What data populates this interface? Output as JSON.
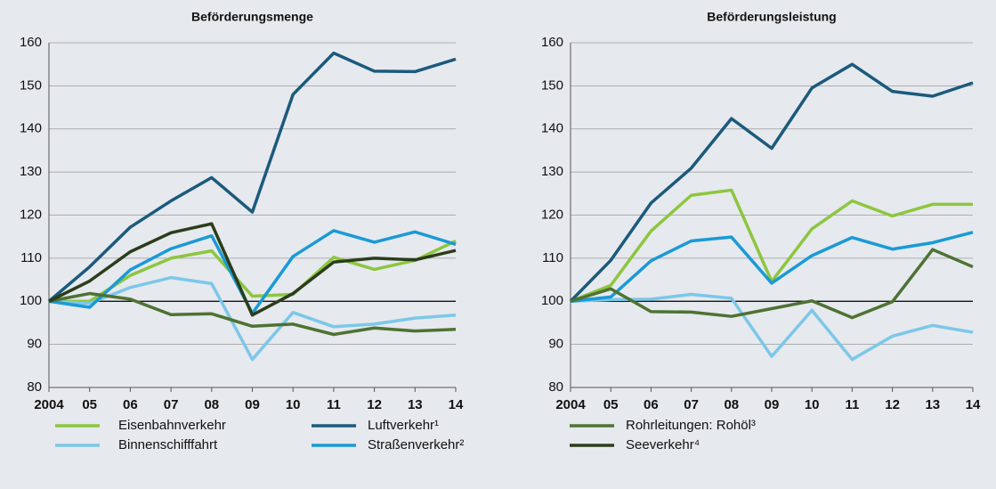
{
  "chart_data": [
    {
      "type": "line",
      "title": "Beförderungsmenge",
      "categories": [
        "2004",
        "05",
        "06",
        "07",
        "08",
        "09",
        "10",
        "11",
        "12",
        "13",
        "14"
      ],
      "ylim": [
        80,
        160
      ],
      "yticks": [
        80,
        90,
        100,
        110,
        120,
        130,
        140,
        150,
        160
      ],
      "grid": true,
      "refline": 100,
      "series": [
        {
          "name": "Eisenbahnverkehr",
          "color": "#8dc63f",
          "values": [
            100,
            100,
            106,
            110,
            111.7,
            101.2,
            101.6,
            110.2,
            107.4,
            109.5,
            114
          ]
        },
        {
          "name": "Binnenschifffahrt",
          "color": "#7cc7e8",
          "values": [
            100,
            99.5,
            103.2,
            105.5,
            104.1,
            86.5,
            97.4,
            94.1,
            94.7,
            96.1,
            96.8
          ]
        },
        {
          "name": "Luftverkehr¹",
          "color": "#1b5a7c",
          "values": [
            100,
            108,
            117.2,
            123.3,
            128.7,
            120.7,
            148,
            157.6,
            153.4,
            153.3,
            156.2
          ]
        },
        {
          "name": "Straßenverkehr²",
          "color": "#1a9ad6",
          "values": [
            100,
            98.6,
            107.3,
            112.2,
            115.2,
            97.2,
            110.4,
            116.4,
            113.7,
            116.1,
            113.2
          ]
        },
        {
          "name": "Rohrleitungen: Rohöl³",
          "color": "#4e7233",
          "values": [
            100,
            101.8,
            100.5,
            96.9,
            97.1,
            94.2,
            94.7,
            92.3,
            93.8,
            93.1,
            93.5
          ]
        },
        {
          "name": "Seeverkehr⁴",
          "color": "#2b3d1a",
          "values": [
            100,
            104.7,
            111.5,
            115.9,
            118,
            96.8,
            101.8,
            109.1,
            110,
            109.6,
            111.8
          ]
        }
      ]
    },
    {
      "type": "line",
      "title": "Beförderungsleistung",
      "categories": [
        "2004",
        "05",
        "06",
        "07",
        "08",
        "09",
        "10",
        "11",
        "12",
        "13",
        "14"
      ],
      "ylim": [
        80,
        160
      ],
      "yticks": [
        80,
        90,
        100,
        110,
        120,
        130,
        140,
        150,
        160
      ],
      "grid": true,
      "refline": 100,
      "series": [
        {
          "name": "Eisenbahnverkehr",
          "color": "#8dc63f",
          "values": [
            100,
            103.7,
            116.3,
            124.6,
            125.8,
            104.6,
            116.8,
            123.3,
            119.8,
            122.5,
            122.5
          ]
        },
        {
          "name": "Binnenschifffahrt",
          "color": "#7cc7e8",
          "values": [
            100,
            100.4,
            100.5,
            101.6,
            100.7,
            87.2,
            97.9,
            86.5,
            91.9,
            94.4,
            92.8
          ]
        },
        {
          "name": "Luftverkehr¹",
          "color": "#1b5a7c",
          "values": [
            100,
            109.5,
            122.8,
            130.9,
            142.4,
            135.5,
            149.5,
            155,
            148.7,
            147.6,
            150.7
          ]
        },
        {
          "name": "Straßenverkehr²",
          "color": "#1a9ad6",
          "values": [
            100,
            101,
            109.4,
            114,
            114.9,
            104.2,
            110.6,
            114.8,
            112.1,
            113.6,
            116
          ]
        },
        {
          "name": "Rohrleitungen: Rohöl³",
          "color": "#4e7233",
          "values": [
            100,
            102.9,
            97.6,
            97.5,
            96.5,
            98.3,
            100.1,
            96.2,
            99.9,
            112,
            108
          ]
        }
      ]
    }
  ]
}
